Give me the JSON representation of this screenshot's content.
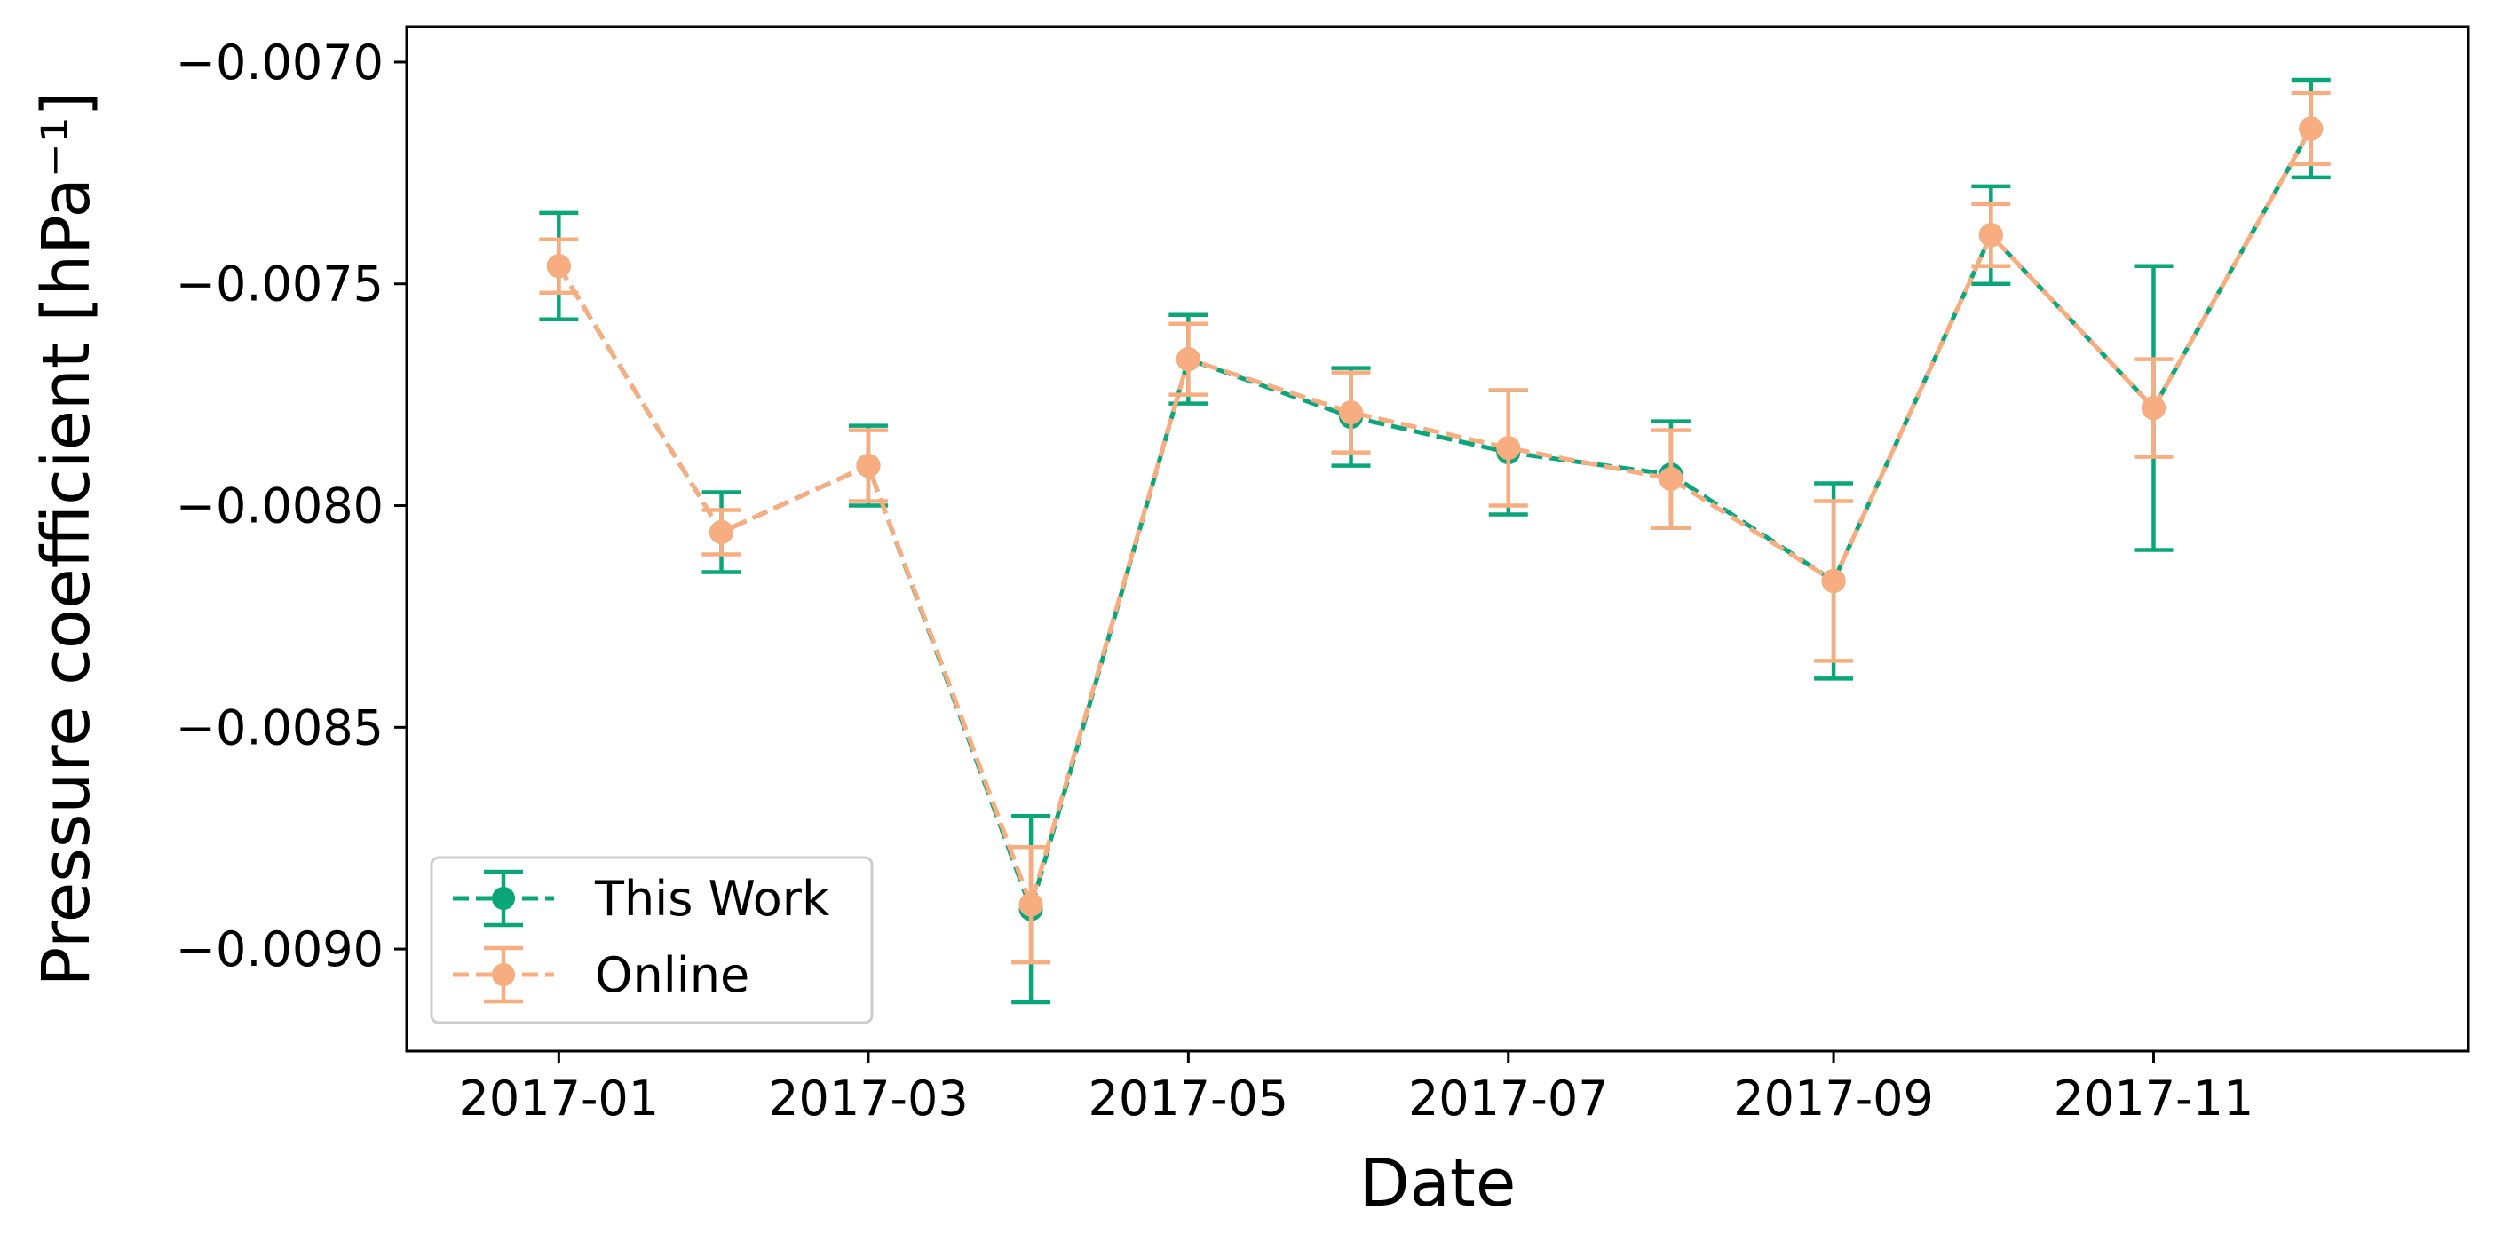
{
  "chart_data": {
    "type": "line",
    "xlabel": "Date",
    "ylabel": "Pressure coefficient [hPa⁻¹]",
    "x": [
      "2017-01",
      "2017-02",
      "2017-03",
      "2017-04",
      "2017-05",
      "2017-06",
      "2017-07",
      "2017-08",
      "2017-09",
      "2017-10",
      "2017-11",
      "2017-12"
    ],
    "x_tick_labels": [
      "2017-01",
      "2017-03",
      "2017-05",
      "2017-07",
      "2017-09",
      "2017-11"
    ],
    "y_tick_labels": [
      "−0.0090",
      "−0.0085",
      "−0.0080",
      "−0.0075",
      "−0.0070"
    ],
    "y_ticks": [
      -0.009,
      -0.0085,
      -0.008,
      -0.0075,
      -0.007
    ],
    "ylim": [
      -0.00923,
      -0.00692
    ],
    "xlim": [
      "2016-12-03",
      "2017-12-31"
    ],
    "grid": false,
    "legend_position": "lower-left",
    "series": [
      {
        "name": "This Work",
        "color": "#0aa579",
        "linestyle": "dashed",
        "marker": "circle",
        "values": [
          -0.00746,
          -0.00806,
          -0.00791,
          -0.00891,
          -0.00767,
          -0.0078,
          -0.00788,
          -0.00793,
          -0.00817,
          -0.00739,
          -0.00778,
          -0.00715
        ],
        "errors": [
          0.00012,
          9e-05,
          9e-05,
          0.00021,
          0.0001,
          0.00011,
          0.00014,
          0.00012,
          0.00022,
          0.00011,
          0.00032,
          0.00011
        ]
      },
      {
        "name": "Online",
        "color": "#f8ad80",
        "linestyle": "dashed",
        "marker": "circle",
        "values": [
          -0.00746,
          -0.00806,
          -0.00791,
          -0.0089,
          -0.00767,
          -0.00779,
          -0.00787,
          -0.00794,
          -0.00817,
          -0.00739,
          -0.00778,
          -0.00715
        ],
        "errors": [
          6e-05,
          5e-05,
          8e-05,
          0.00013,
          8e-05,
          9e-05,
          0.00013,
          0.00011,
          0.00018,
          7e-05,
          0.00011,
          8e-05
        ]
      }
    ]
  }
}
